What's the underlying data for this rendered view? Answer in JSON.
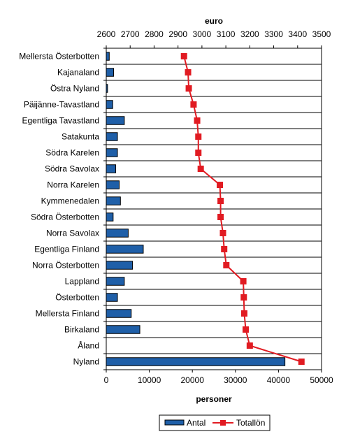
{
  "chart_data": {
    "type": "bar",
    "categories": [
      "Mellersta Österbotten",
      "Kajanaland",
      "Östra Nyland",
      "Päijänne-Tavastland",
      "Egentliga Tavastland",
      "Satakunta",
      "Södra Karelen",
      "Södra Savolax",
      "Norra Karelen",
      "Kymmenedalen",
      "Södra Österbotten",
      "Norra Savolax",
      "Egentliga Finland",
      "Norra Österbotten",
      "Lappland",
      "Österbotten",
      "Mellersta Finland",
      "Birkaland",
      "Åland",
      "Nyland"
    ],
    "series": [
      {
        "name": "Antal",
        "type": "bar",
        "axis": "bottom",
        "color": "#1f5fa8",
        "values": [
          700,
          1700,
          300,
          1500,
          4200,
          2600,
          2600,
          2200,
          3000,
          3300,
          1600,
          5100,
          8600,
          6100,
          4200,
          2600,
          5800,
          7800,
          0,
          41500
        ]
      },
      {
        "name": "Totallön",
        "type": "line",
        "axis": "top",
        "color": "#e11b22",
        "values": [
          2925,
          2942,
          2945,
          2965,
          2980,
          2985,
          2985,
          2995,
          3075,
          3078,
          3078,
          3088,
          3093,
          3102,
          3173,
          3175,
          3177,
          3183,
          3200,
          3416
        ]
      }
    ],
    "xlabel_bottom": "personer",
    "xlabel_top": "euro",
    "xlim_bottom": [
      0,
      50000
    ],
    "xlim_top": [
      2600,
      3500
    ],
    "xticks_bottom": [
      "0",
      "10000",
      "20000",
      "30000",
      "40000",
      "50000"
    ],
    "xticks_top": [
      "2600",
      "2700",
      "2800",
      "2900",
      "3000",
      "3100",
      "3200",
      "3300",
      "3400",
      "3500"
    ],
    "grid": "horizontal",
    "legend_position": "bottom"
  }
}
